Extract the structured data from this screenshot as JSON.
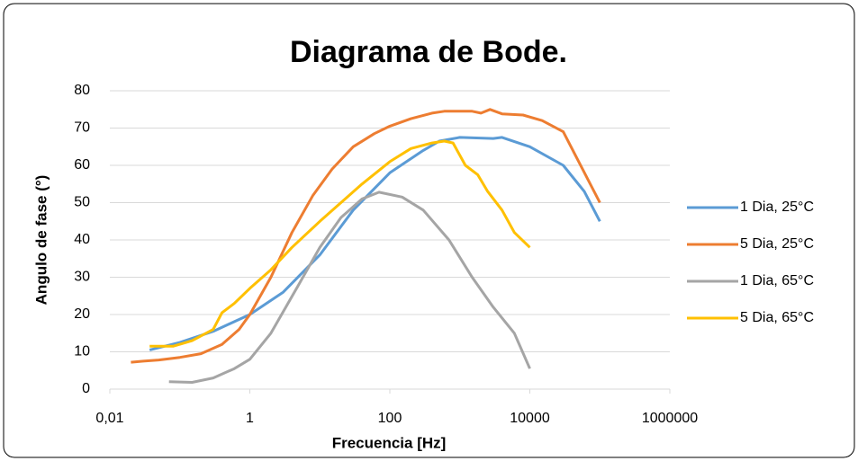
{
  "chart_data": {
    "type": "line",
    "title": "Diagrama de Bode.",
    "x_label": "Frecuencia [Hz]",
    "y_label": "Angulo de fase (°)",
    "xscale": "log",
    "xlim": [
      0.01,
      1000000
    ],
    "xticks": [
      {
        "value": 0.01,
        "label": "0,01"
      },
      1,
      100,
      10000,
      1000000
    ],
    "ylim": [
      0,
      80
    ],
    "yticks": [
      0,
      10,
      20,
      30,
      40,
      50,
      60,
      70,
      80
    ],
    "grid": true,
    "legend": "right",
    "series": [
      {
        "name": "1 Dia, 25°C",
        "color": "#5b9bd5",
        "x": [
          0.037,
          0.1,
          0.3,
          1,
          3,
          10,
          30,
          100,
          300,
          510,
          1000,
          3000,
          4000,
          10000,
          30000,
          60000,
          100000
        ],
        "values": [
          10.5,
          12.5,
          15.5,
          20,
          26,
          36,
          48,
          58,
          64,
          66.5,
          67.5,
          67.2,
          67.5,
          65,
          60,
          53,
          45
        ]
      },
      {
        "name": "5 Dia, 25°C",
        "color": "#ed7d31",
        "x": [
          0.02,
          0.03,
          0.05,
          0.1,
          0.2,
          0.4,
          0.7,
          1,
          2,
          4,
          8,
          15,
          30,
          60,
          100,
          200,
          400,
          600,
          1500,
          2000,
          2700,
          4000,
          8000,
          15000,
          30000,
          50000,
          100000
        ],
        "values": [
          7.2,
          7.5,
          7.8,
          8.5,
          9.5,
          12,
          16,
          20,
          30,
          42,
          52,
          59,
          65,
          68.5,
          70.5,
          72.5,
          74,
          74.5,
          74.5,
          74,
          75,
          73.8,
          73.5,
          72,
          69,
          61,
          50
        ]
      },
      {
        "name": "1 Dia, 65°C",
        "color": "#a5a5a5",
        "x": [
          0.07,
          0.15,
          0.3,
          0.6,
          1,
          2,
          5,
          10,
          20,
          40,
          70,
          150,
          300,
          700,
          1500,
          3000,
          6000,
          10000
        ],
        "values": [
          2,
          1.8,
          3,
          5.5,
          8,
          15,
          28,
          38,
          46,
          51,
          52.8,
          51.5,
          48,
          40,
          30,
          22,
          15,
          5.5
        ]
      },
      {
        "name": "5 Dia, 65°C",
        "color": "#ffc000",
        "x": [
          0.037,
          0.08,
          0.15,
          0.3,
          0.4,
          0.6,
          1,
          2,
          4,
          10,
          20,
          40,
          100,
          200,
          400,
          600,
          800,
          1200,
          1800,
          2500,
          4000,
          6000,
          10000
        ],
        "values": [
          11.5,
          11.5,
          13,
          16,
          20.5,
          23,
          27,
          32,
          38,
          45,
          50,
          55,
          61,
          64.5,
          66,
          66.5,
          66,
          60,
          57.5,
          53,
          48,
          42,
          38
        ]
      }
    ]
  }
}
